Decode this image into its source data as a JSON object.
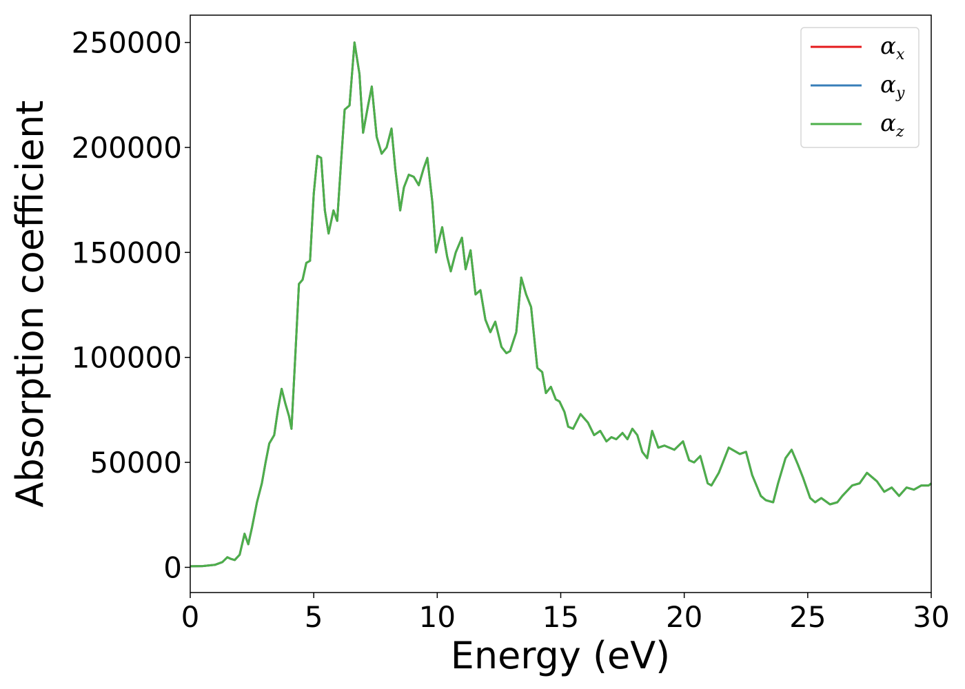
{
  "chart_data": {
    "type": "line",
    "title": "",
    "xlabel": "Energy (eV)",
    "ylabel": "Absorption coefficient",
    "xlim": [
      0,
      30
    ],
    "ylim": [
      -12000,
      263000
    ],
    "xticks": [
      0,
      5,
      10,
      15,
      20,
      25,
      30
    ],
    "yticks": [
      0,
      50000,
      100000,
      150000,
      200000,
      250000
    ],
    "grid": false,
    "legend_position": "top-right",
    "series": [
      {
        "name": "x",
        "legend_symbol": "α",
        "color": "#e41a1c"
      },
      {
        "name": "y",
        "legend_symbol": "α",
        "color": "#377eb8"
      },
      {
        "name": "z",
        "legend_symbol": "α",
        "color": "#4daf4a"
      }
    ],
    "x": [
      0,
      0.5,
      1.0,
      1.3,
      1.5,
      1.65,
      1.8,
      2.0,
      2.2,
      2.35,
      2.5,
      2.7,
      2.9,
      3.05,
      3.2,
      3.4,
      3.55,
      3.7,
      3.85,
      4.0,
      4.1,
      4.25,
      4.4,
      4.55,
      4.7,
      4.85,
      5.0,
      5.15,
      5.3,
      5.45,
      5.6,
      5.8,
      5.95,
      6.1,
      6.25,
      6.45,
      6.65,
      6.85,
      7.0,
      7.2,
      7.35,
      7.55,
      7.75,
      7.95,
      8.15,
      8.3,
      8.5,
      8.65,
      8.85,
      9.05,
      9.25,
      9.45,
      9.6,
      9.8,
      9.95,
      10.2,
      10.4,
      10.55,
      10.75,
      11.0,
      11.15,
      11.35,
      11.55,
      11.75,
      11.95,
      12.15,
      12.35,
      12.6,
      12.8,
      12.95,
      13.2,
      13.4,
      13.6,
      13.8,
      14.05,
      14.25,
      14.4,
      14.6,
      14.8,
      14.95,
      15.15,
      15.3,
      15.5,
      15.8,
      16.1,
      16.35,
      16.6,
      16.85,
      17.05,
      17.25,
      17.5,
      17.7,
      17.9,
      18.1,
      18.3,
      18.5,
      18.7,
      18.95,
      19.2,
      19.6,
      19.95,
      20.2,
      20.4,
      20.65,
      20.95,
      21.1,
      21.4,
      21.8,
      22.25,
      22.5,
      22.75,
      23.1,
      23.3,
      23.6,
      23.8,
      24.1,
      24.35,
      24.6,
      24.8,
      25.1,
      25.3,
      25.55,
      25.9,
      26.2,
      26.4,
      26.8,
      27.1,
      27.4,
      27.8,
      28.1,
      28.4,
      28.7,
      29.0,
      29.3,
      29.6,
      29.9,
      30.0
    ],
    "y": [
      500,
      600,
      1200,
      2500,
      4800,
      4000,
      3500,
      6000,
      16000,
      11000,
      19000,
      31000,
      40000,
      50000,
      59000,
      63000,
      75000,
      85000,
      78000,
      72000,
      66000,
      100000,
      135000,
      137000,
      145000,
      146000,
      178000,
      196000,
      195000,
      170000,
      159000,
      170000,
      165000,
      192000,
      218000,
      220000,
      250000,
      235000,
      207000,
      220000,
      229000,
      205000,
      197000,
      200000,
      209000,
      190000,
      170000,
      181000,
      187000,
      186000,
      182000,
      190000,
      195000,
      174000,
      150000,
      162000,
      148000,
      141000,
      150000,
      157000,
      142000,
      151000,
      130000,
      132000,
      118000,
      112000,
      117000,
      105000,
      102000,
      103000,
      112000,
      138000,
      130000,
      124000,
      95000,
      93000,
      83000,
      86000,
      80000,
      79000,
      74000,
      67000,
      66000,
      73000,
      69000,
      63000,
      65000,
      60000,
      62000,
      61000,
      64000,
      61000,
      66000,
      63000,
      55000,
      52000,
      65000,
      57000,
      58000,
      56000,
      60000,
      51000,
      50000,
      53000,
      40000,
      39000,
      45000,
      57000,
      54000,
      55000,
      44000,
      34000,
      32000,
      31000,
      40000,
      52000,
      56000,
      49000,
      43000,
      33000,
      31000,
      33000,
      30000,
      31000,
      34000,
      39000,
      40000,
      45000,
      41000,
      36000,
      38000,
      34000,
      38000,
      37000,
      39000,
      39000,
      40000
    ]
  }
}
